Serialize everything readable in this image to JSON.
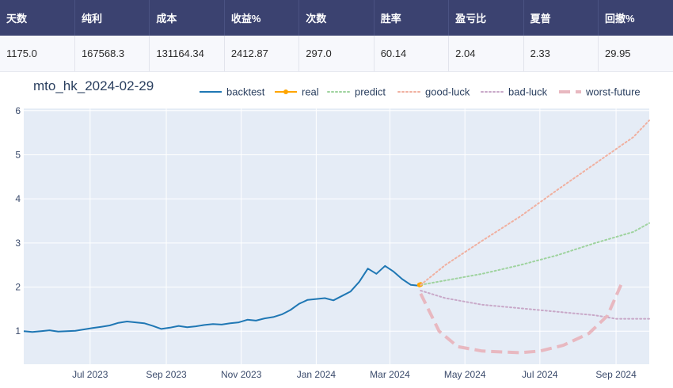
{
  "stats_table": {
    "headers": [
      "天数",
      "纯利",
      "成本",
      "收益%",
      "次数",
      "胜率",
      "盈亏比",
      "夏普",
      "回撤%"
    ],
    "values": [
      "1175.0",
      "167568.3",
      "131164.34",
      "2412.87",
      "297.0",
      "60.14",
      "2.04",
      "2.33",
      "29.95"
    ]
  },
  "chart_data": {
    "type": "line",
    "title": "mto_hk_2024-02-29",
    "xlabel": "",
    "ylabel": "",
    "x_range": [
      "2023-05-08",
      "2024-09-28"
    ],
    "ylim": [
      0.25,
      6.05
    ],
    "x_ticks": [
      {
        "date": "2023-07-01",
        "label": "Jul 2023"
      },
      {
        "date": "2023-09-01",
        "label": "Sep 2023"
      },
      {
        "date": "2023-11-01",
        "label": "Nov 2023"
      },
      {
        "date": "2024-01-01",
        "label": "Jan 2024"
      },
      {
        "date": "2024-03-01",
        "label": "Mar 2024"
      },
      {
        "date": "2024-05-01",
        "label": "May 2024"
      },
      {
        "date": "2024-07-01",
        "label": "Jul 2024"
      },
      {
        "date": "2024-09-01",
        "label": "Sep 2024"
      }
    ],
    "y_ticks": [
      1,
      2,
      3,
      4,
      5,
      6
    ],
    "grid": true,
    "legend_position": "top-right",
    "background": "#e5ecf6",
    "series": [
      {
        "name": "backtest",
        "color": "#1f77b4",
        "style": "solid",
        "points": [
          [
            "2023-05-08",
            1.0
          ],
          [
            "2023-05-15",
            0.98
          ],
          [
            "2023-05-22",
            1.0
          ],
          [
            "2023-05-29",
            1.02
          ],
          [
            "2023-06-05",
            0.99
          ],
          [
            "2023-06-12",
            1.0
          ],
          [
            "2023-06-19",
            1.01
          ],
          [
            "2023-06-26",
            1.04
          ],
          [
            "2023-07-03",
            1.07
          ],
          [
            "2023-07-10",
            1.1
          ],
          [
            "2023-07-17",
            1.13
          ],
          [
            "2023-07-24",
            1.19
          ],
          [
            "2023-07-31",
            1.22
          ],
          [
            "2023-08-07",
            1.2
          ],
          [
            "2023-08-14",
            1.18
          ],
          [
            "2023-08-21",
            1.12
          ],
          [
            "2023-08-28",
            1.05
          ],
          [
            "2023-09-04",
            1.08
          ],
          [
            "2023-09-11",
            1.12
          ],
          [
            "2023-09-18",
            1.09
          ],
          [
            "2023-09-25",
            1.11
          ],
          [
            "2023-10-02",
            1.14
          ],
          [
            "2023-10-09",
            1.16
          ],
          [
            "2023-10-16",
            1.15
          ],
          [
            "2023-10-23",
            1.18
          ],
          [
            "2023-10-30",
            1.2
          ],
          [
            "2023-11-06",
            1.26
          ],
          [
            "2023-11-13",
            1.24
          ],
          [
            "2023-11-20",
            1.29
          ],
          [
            "2023-11-27",
            1.32
          ],
          [
            "2023-12-04",
            1.38
          ],
          [
            "2023-12-11",
            1.48
          ],
          [
            "2023-12-18",
            1.62
          ],
          [
            "2023-12-25",
            1.71
          ],
          [
            "2024-01-01",
            1.73
          ],
          [
            "2024-01-08",
            1.75
          ],
          [
            "2024-01-15",
            1.7
          ],
          [
            "2024-01-22",
            1.8
          ],
          [
            "2024-01-29",
            1.9
          ],
          [
            "2024-02-05",
            2.12
          ],
          [
            "2024-02-12",
            2.42
          ],
          [
            "2024-02-19",
            2.3
          ],
          [
            "2024-02-26",
            2.48
          ],
          [
            "2024-03-04",
            2.35
          ],
          [
            "2024-03-11",
            2.18
          ],
          [
            "2024-03-18",
            2.05
          ],
          [
            "2024-03-25",
            2.03
          ]
        ]
      },
      {
        "name": "real",
        "color": "#ffa500",
        "style": "solid-marker",
        "points": [
          [
            "2024-03-25",
            2.05
          ],
          [
            "2024-03-26",
            2.06
          ]
        ]
      },
      {
        "name": "predict",
        "color": "#9fd39f",
        "style": "dotted",
        "points": [
          [
            "2024-03-26",
            2.05
          ],
          [
            "2024-04-15",
            2.15
          ],
          [
            "2024-05-15",
            2.3
          ],
          [
            "2024-06-15",
            2.5
          ],
          [
            "2024-07-15",
            2.72
          ],
          [
            "2024-08-15",
            3.0
          ],
          [
            "2024-09-15",
            3.25
          ],
          [
            "2024-09-28",
            3.45
          ]
        ]
      },
      {
        "name": "good-luck",
        "color": "#f0b0a0",
        "style": "dotted",
        "points": [
          [
            "2024-03-26",
            2.05
          ],
          [
            "2024-04-15",
            2.5
          ],
          [
            "2024-05-15",
            3.05
          ],
          [
            "2024-06-15",
            3.6
          ],
          [
            "2024-07-15",
            4.2
          ],
          [
            "2024-08-15",
            4.8
          ],
          [
            "2024-09-15",
            5.4
          ],
          [
            "2024-09-28",
            5.78
          ]
        ]
      },
      {
        "name": "bad-luck",
        "color": "#c8a8c8",
        "style": "dotted",
        "points": [
          [
            "2024-03-26",
            1.92
          ],
          [
            "2024-04-15",
            1.75
          ],
          [
            "2024-05-15",
            1.6
          ],
          [
            "2024-06-15",
            1.52
          ],
          [
            "2024-07-15",
            1.44
          ],
          [
            "2024-08-15",
            1.36
          ],
          [
            "2024-09-01",
            1.28
          ],
          [
            "2024-09-28",
            1.28
          ]
        ]
      },
      {
        "name": "worst-future",
        "color": "#e8b8c0",
        "style": "dashed",
        "points": [
          [
            "2024-03-26",
            1.85
          ],
          [
            "2024-04-10",
            1.0
          ],
          [
            "2024-04-25",
            0.65
          ],
          [
            "2024-05-15",
            0.55
          ],
          [
            "2024-06-15",
            0.51
          ],
          [
            "2024-07-01",
            0.55
          ],
          [
            "2024-07-20",
            0.68
          ],
          [
            "2024-08-10",
            0.95
          ],
          [
            "2024-08-25",
            1.35
          ],
          [
            "2024-09-05",
            2.05
          ]
        ]
      }
    ]
  }
}
